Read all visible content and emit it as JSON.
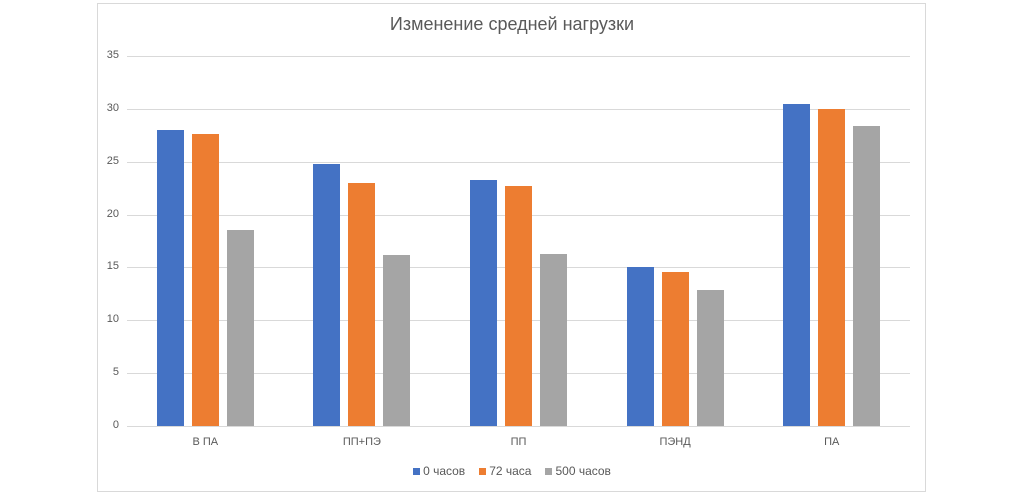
{
  "chart_data": {
    "type": "bar",
    "title": "Изменение средней нагрузки",
    "xlabel": "",
    "ylabel": "",
    "ylim": [
      0,
      35
    ],
    "yticks": [
      0,
      5,
      10,
      15,
      20,
      25,
      30,
      35
    ],
    "grid": true,
    "legend_position": "bottom",
    "categories": [
      "В ПА",
      "ПП+ПЭ",
      "ПП",
      "ПЭНД",
      "ПА"
    ],
    "series": [
      {
        "name": "0 часов",
        "color": "#4472c4",
        "values": [
          28.0,
          24.8,
          23.3,
          15.0,
          30.5
        ]
      },
      {
        "name": "72 часа",
        "color": "#ed7d31",
        "values": [
          27.6,
          23.0,
          22.7,
          14.6,
          30.0
        ]
      },
      {
        "name": "500 часов",
        "color": "#a5a5a5",
        "values": [
          18.5,
          16.2,
          16.3,
          12.9,
          28.4
        ]
      }
    ]
  }
}
